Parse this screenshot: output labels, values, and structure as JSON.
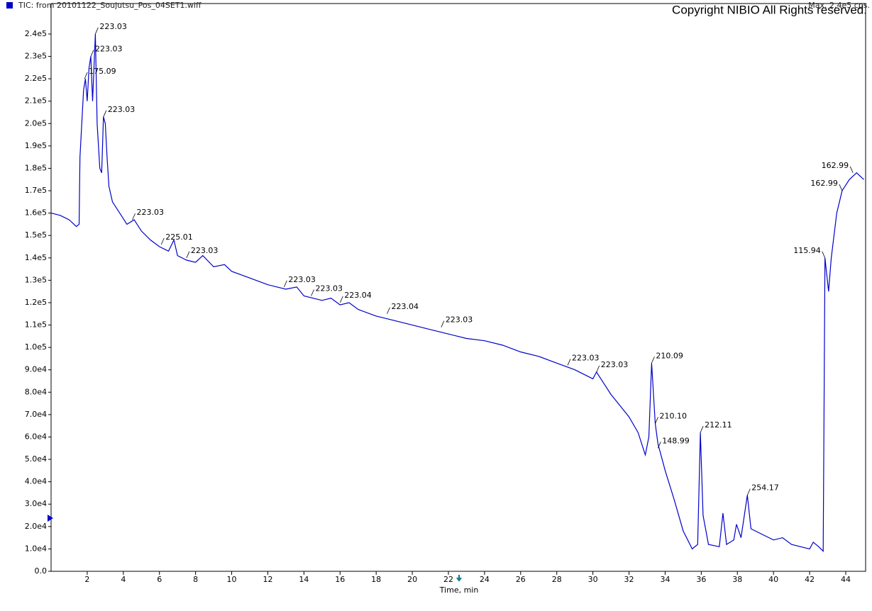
{
  "chart_data": {
    "type": "line",
    "title": "TIC: from 20101122_Soujutsu_Pos_04SET1.wiff",
    "max_label": "Max. 2.4e5 cps.",
    "copyright": "Copyright NIBIO All Rights reserved.",
    "x_label": "Time, min",
    "x": [
      0,
      0.5,
      1,
      1.4,
      1.55,
      1.6,
      1.8,
      1.9,
      2.0,
      2.1,
      2.2,
      2.3,
      2.45,
      2.55,
      2.7,
      2.8,
      2.9,
      3.0,
      3.1,
      3.2,
      3.4,
      3.8,
      4.2,
      4.6,
      5,
      5.5,
      6,
      6.5,
      6.8,
      7,
      7.5,
      8,
      8.4,
      9,
      9.6,
      10,
      11,
      12,
      13,
      13.6,
      14,
      15,
      15.5,
      16,
      16.5,
      17,
      18,
      19,
      20,
      21,
      22,
      23,
      24,
      25,
      26,
      27,
      28,
      29,
      30,
      30.2,
      30.6,
      31,
      31.5,
      32,
      32.5,
      32.9,
      33.1,
      33.25,
      33.45,
      33.6,
      34,
      34.5,
      35,
      35.5,
      35.8,
      35.95,
      36.1,
      36.4,
      37,
      37.2,
      37.4,
      37.8,
      37.95,
      38.2,
      38.55,
      38.75,
      39.5,
      40,
      40.5,
      41,
      41.5,
      42,
      42.2,
      42.5,
      42.75,
      42.85,
      43.05,
      43.2,
      43.5,
      43.8,
      44.2,
      44.6,
      45
    ],
    "series": [
      {
        "name": "TIC",
        "color": "#0000cc",
        "values": [
          160000,
          159000,
          157000,
          154000,
          155000,
          185000,
          215000,
          220000,
          210000,
          225000,
          230000,
          210000,
          240000,
          200000,
          180000,
          178000,
          203000,
          200000,
          185000,
          172000,
          165000,
          160000,
          155000,
          157000,
          152000,
          148000,
          145000,
          143000,
          148000,
          141000,
          139000,
          138000,
          141000,
          136000,
          137000,
          134000,
          131000,
          128000,
          126000,
          127000,
          123000,
          121000,
          122000,
          119000,
          120000,
          117000,
          114000,
          112000,
          110000,
          108000,
          106000,
          104000,
          103000,
          101000,
          98000,
          96000,
          93000,
          90000,
          86000,
          89000,
          84000,
          79000,
          74000,
          69000,
          62000,
          52000,
          60000,
          93000,
          66000,
          57000,
          45000,
          32000,
          18000,
          10000,
          12000,
          62000,
          25000,
          12000,
          11000,
          26000,
          12000,
          14000,
          21000,
          15000,
          34000,
          19000,
          16000,
          14000,
          15000,
          12000,
          11000,
          10000,
          13000,
          11000,
          9000,
          140000,
          125000,
          140000,
          160000,
          170000,
          175000,
          178000,
          175000
        ]
      }
    ],
    "annotations": [
      {
        "text": "175.09",
        "x": 1.85,
        "y": 220000
      },
      {
        "text": "223.03",
        "x": 2.2,
        "y": 230000
      },
      {
        "text": "223.03",
        "x": 2.45,
        "y": 240000
      },
      {
        "text": "223.03",
        "x": 2.9,
        "y": 203000
      },
      {
        "text": "223.03",
        "x": 4.5,
        "y": 157000
      },
      {
        "text": "225.01",
        "x": 6.1,
        "y": 146000
      },
      {
        "text": "223.03",
        "x": 7.5,
        "y": 140000
      },
      {
        "text": "223.03",
        "x": 12.9,
        "y": 127000
      },
      {
        "text": "223.03",
        "x": 14.4,
        "y": 123000
      },
      {
        "text": "223.04",
        "x": 16.0,
        "y": 120000
      },
      {
        "text": "223.04",
        "x": 18.6,
        "y": 115000
      },
      {
        "text": "223.03",
        "x": 21.6,
        "y": 109000
      },
      {
        "text": "223.03",
        "x": 28.6,
        "y": 92000
      },
      {
        "text": "223.03",
        "x": 30.2,
        "y": 89000
      },
      {
        "text": "210.09",
        "x": 33.25,
        "y": 93000
      },
      {
        "text": "210.10",
        "x": 33.45,
        "y": 66000
      },
      {
        "text": "148.99",
        "x": 33.6,
        "y": 55000
      },
      {
        "text": "212.11",
        "x": 35.95,
        "y": 62000
      },
      {
        "text": "254.17",
        "x": 38.55,
        "y": 34000
      },
      {
        "text": "115.94",
        "x": 42.85,
        "y": 140000
      },
      {
        "text": "162.99",
        "x": 43.8,
        "y": 170000
      },
      {
        "text": "162.99",
        "x": 44.4,
        "y": 178000
      }
    ],
    "xlim": [
      0,
      45.1
    ],
    "ylim": [
      0,
      253600
    ],
    "xticks": [
      2,
      4,
      6,
      8,
      10,
      12,
      14,
      16,
      18,
      20,
      22,
      24,
      26,
      28,
      30,
      32,
      34,
      36,
      38,
      40,
      42,
      44
    ],
    "yticks": [
      {
        "value": 0,
        "label": "0.0"
      },
      {
        "value": 10000,
        "label": "1.0e4"
      },
      {
        "value": 20000,
        "label": "2.0e4"
      },
      {
        "value": 30000,
        "label": "3.0e4"
      },
      {
        "value": 40000,
        "label": "4.0e4"
      },
      {
        "value": 50000,
        "label": "5.0e4"
      },
      {
        "value": 60000,
        "label": "6.0e4"
      },
      {
        "value": 70000,
        "label": "7.0e4"
      },
      {
        "value": 80000,
        "label": "8.0e4"
      },
      {
        "value": 90000,
        "label": "9.0e4"
      },
      {
        "value": 100000,
        "label": "1.0e5"
      },
      {
        "value": 110000,
        "label": "1.1e5"
      },
      {
        "value": 120000,
        "label": "1.2e5"
      },
      {
        "value": 130000,
        "label": "1.3e5"
      },
      {
        "value": 140000,
        "label": "1.4e5"
      },
      {
        "value": 150000,
        "label": "1.5e5"
      },
      {
        "value": 160000,
        "label": "1.6e5"
      },
      {
        "value": 170000,
        "label": "1.7e5"
      },
      {
        "value": 180000,
        "label": "1.8e5"
      },
      {
        "value": 190000,
        "label": "1.9e5"
      },
      {
        "value": 200000,
        "label": "2.0e5"
      },
      {
        "value": 210000,
        "label": "2.1e5"
      },
      {
        "value": 220000,
        "label": "2.2e5"
      },
      {
        "value": 230000,
        "label": "2.3e5"
      },
      {
        "value": 240000,
        "label": "2.4e5"
      }
    ],
    "grid": false
  }
}
